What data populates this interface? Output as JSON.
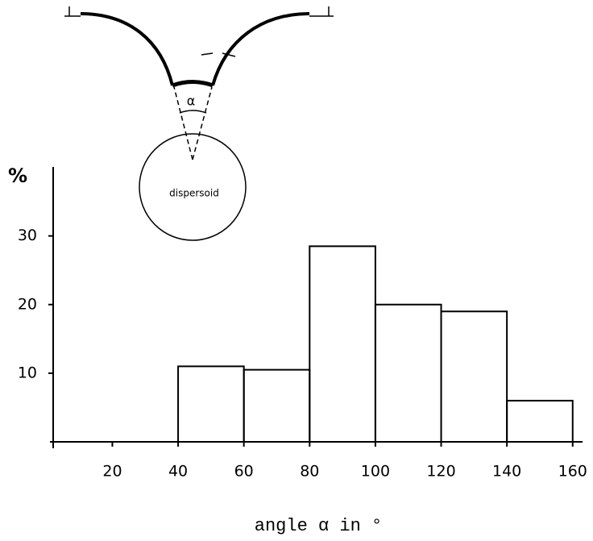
{
  "chart_data": {
    "type": "histogram",
    "xlabel": "angle α in °",
    "ylabel": "%",
    "bins": [
      40,
      60,
      80,
      100,
      120,
      140,
      160
    ],
    "values": [
      11,
      10.5,
      28.5,
      20,
      19,
      6
    ],
    "color": "#000000",
    "xlim": [
      2,
      163
    ],
    "ylim": [
      0,
      41
    ],
    "xticks": [
      20,
      40,
      60,
      80,
      100,
      120,
      140,
      160
    ],
    "yticks": [
      10,
      20,
      30
    ],
    "inset_labels": [
      "α",
      "dispersoid"
    ]
  }
}
